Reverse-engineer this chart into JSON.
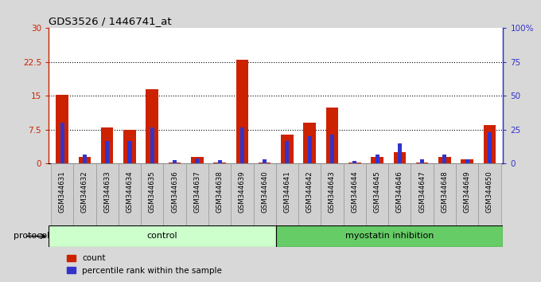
{
  "title": "GDS3526 / 1446741_at",
  "samples": [
    "GSM344631",
    "GSM344632",
    "GSM344633",
    "GSM344634",
    "GSM344635",
    "GSM344636",
    "GSM344637",
    "GSM344638",
    "GSM344639",
    "GSM344640",
    "GSM344641",
    "GSM344642",
    "GSM344643",
    "GSM344644",
    "GSM344645",
    "GSM344646",
    "GSM344647",
    "GSM344648",
    "GSM344649",
    "GSM344650"
  ],
  "red_values": [
    15.2,
    1.5,
    8.0,
    7.5,
    16.5,
    0.2,
    1.5,
    0.2,
    23.0,
    0.2,
    6.5,
    9.0,
    12.5,
    0.2,
    1.5,
    2.5,
    0.2,
    1.5,
    1.0,
    8.5
  ],
  "blue_values": [
    9.0,
    2.0,
    5.0,
    5.0,
    8.0,
    0.7,
    1.2,
    0.7,
    8.0,
    0.9,
    5.0,
    6.0,
    6.5,
    0.5,
    2.0,
    4.5,
    1.0,
    2.0,
    1.0,
    7.0
  ],
  "red_color": "#CC2200",
  "blue_color": "#3333CC",
  "ylim_left": [
    0,
    30
  ],
  "ylim_right": [
    0,
    100
  ],
  "yticks_left": [
    0,
    7.5,
    15,
    22.5,
    30
  ],
  "yticks_right": [
    0,
    25,
    50,
    75,
    100
  ],
  "ytick_labels_left": [
    "0",
    "7.5",
    "15",
    "22.5",
    "30"
  ],
  "ytick_labels_right": [
    "0",
    "25",
    "50",
    "75",
    "100%"
  ],
  "hlines": [
    7.5,
    15,
    22.5
  ],
  "groups": [
    {
      "label": "control",
      "start": 0,
      "end": 10,
      "color": "#CCFFCC"
    },
    {
      "label": "myostatin inhibition",
      "start": 10,
      "end": 20,
      "color": "#66CC66"
    }
  ],
  "protocol_label": "protocol",
  "legend_red": "count",
  "legend_blue": "percentile rank within the sample",
  "bg_color": "#D8D8D8",
  "plot_bg_color": "#FFFFFF",
  "xtick_bg": "#D0D0D0"
}
